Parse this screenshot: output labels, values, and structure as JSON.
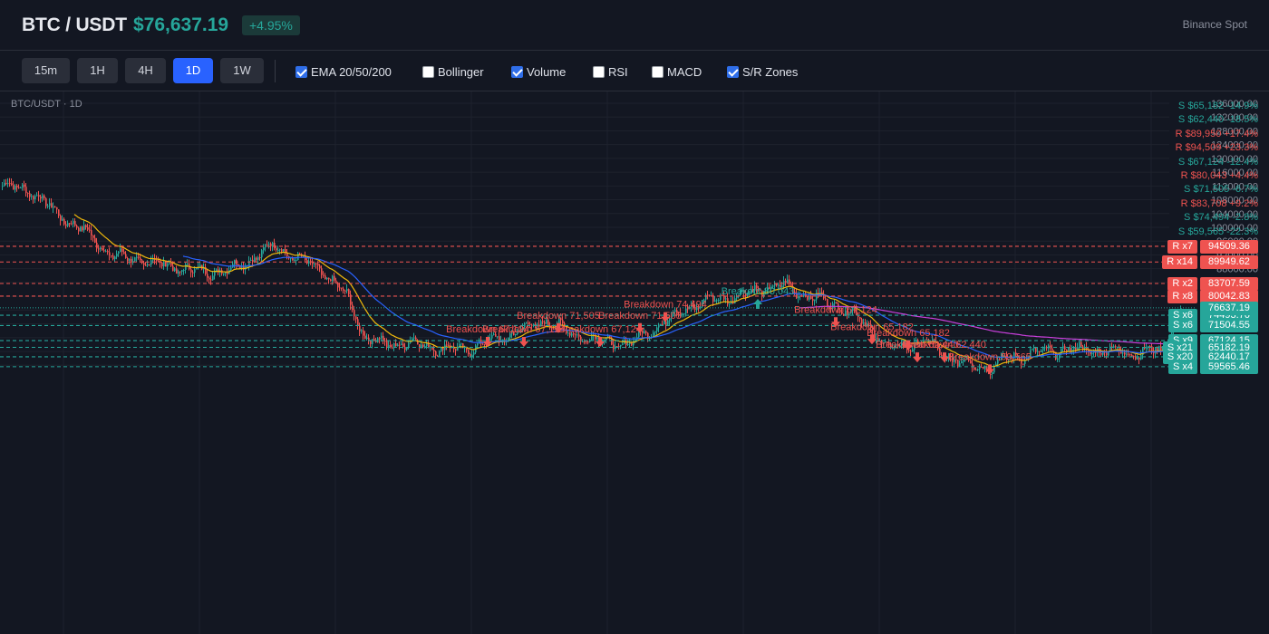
{
  "header": {
    "symbol": "BTC / USDT",
    "price": "$76,637.19",
    "change": "+4.95%",
    "exchange": "Binance Spot"
  },
  "toolbar": {
    "timeframes": [
      {
        "label": "15m",
        "active": false
      },
      {
        "label": "1H",
        "active": false
      },
      {
        "label": "4H",
        "active": false
      },
      {
        "label": "1D",
        "active": true
      },
      {
        "label": "1W",
        "active": false
      }
    ],
    "indicators": [
      {
        "label": "EMA 20/50/200",
        "checked": true
      },
      {
        "label": "Bollinger",
        "checked": false
      },
      {
        "label": "Volume",
        "checked": true
      },
      {
        "label": "RSI",
        "checked": false
      },
      {
        "label": "MACD",
        "checked": false
      },
      {
        "label": "S/R Zones",
        "checked": true
      }
    ]
  },
  "chart": {
    "label": "BTC/USDT · 1D",
    "colors": {
      "up": "#26a69a",
      "down": "#ef5350",
      "ema20": "#f0b90b",
      "ema50": "#2962ff",
      "ema200": "#c93fdb",
      "bg": "#131722",
      "grid": "#1e222d",
      "axis_text": "#8a8f9c"
    }
  },
  "sr_list": [
    {
      "text": "S $65,182 -14.9%",
      "type": "s"
    },
    {
      "text": "S $62,440 -18.5%",
      "type": "s"
    },
    {
      "text": "R $89,950 +17.4%",
      "type": "r"
    },
    {
      "text": "R $94,509 +23.3%",
      "type": "r"
    },
    {
      "text": "S $67,124 -12.4%",
      "type": "s"
    },
    {
      "text": "R $80,043 +4.4%",
      "type": "r"
    },
    {
      "text": "S $71,505 -6.7%",
      "type": "s"
    },
    {
      "text": "R $83,708 +9.2%",
      "type": "r"
    },
    {
      "text": "S $74,494 -2.8%",
      "type": "s"
    },
    {
      "text": "S $59,565 -22.3%",
      "type": "s"
    }
  ],
  "chart_data": {
    "type": "candlestick",
    "y_ticks": [
      "136000.00",
      "132000.00",
      "128000.00",
      "124000.00",
      "120000.00",
      "116000.00",
      "112000.00",
      "108000.00",
      "104000.00",
      "100000.00",
      "96000.00",
      "92000.00",
      "88000.00",
      "84000.00",
      "80000.00",
      "76000.00",
      "72000.00",
      "68000.00",
      "64000.00",
      "60000.00"
    ],
    "ylim": [
      58000,
      138000
    ],
    "current_price": 76637.19,
    "current_price_label": "76637.19",
    "zones": [
      {
        "type": "r",
        "tag": "R x7",
        "price": 94509.36,
        "label": "94509.36"
      },
      {
        "type": "r",
        "tag": "R x14",
        "price": 89949.62,
        "label": "89949.62"
      },
      {
        "type": "r",
        "tag": "R x2",
        "price": 83707.59,
        "label": "83707.59"
      },
      {
        "type": "r",
        "tag": "R x8",
        "price": 80042.83,
        "label": "80042.83"
      },
      {
        "type": "s",
        "tag": "S x6",
        "price": 74493.76,
        "label": "74493.76"
      },
      {
        "type": "s",
        "tag": "S x6",
        "price": 71504.55,
        "label": "71504.55"
      },
      {
        "type": "s",
        "tag": "S x9",
        "price": 67124.15,
        "label": "67124.15"
      },
      {
        "type": "s",
        "tag": "S x21",
        "price": 65182.19,
        "label": "65182.19"
      },
      {
        "type": "s",
        "tag": "S x20",
        "price": 62440.17,
        "label": "62440.17"
      },
      {
        "type": "s",
        "tag": "S x4",
        "price": 59565.46,
        "label": "59565.46"
      }
    ],
    "anchors": [
      [
        0,
        112000
      ],
      [
        15,
        111000
      ],
      [
        30,
        104000
      ],
      [
        45,
        99000
      ],
      [
        60,
        92000
      ],
      [
        75,
        90500
      ],
      [
        90,
        89000
      ],
      [
        110,
        87000
      ],
      [
        125,
        87500
      ],
      [
        138,
        91000
      ],
      [
        150,
        95000
      ],
      [
        162,
        91000
      ],
      [
        175,
        88000
      ],
      [
        190,
        80000
      ],
      [
        200,
        68000
      ],
      [
        212,
        66000
      ],
      [
        225,
        66500
      ],
      [
        240,
        65000
      ],
      [
        255,
        64500
      ],
      [
        270,
        67000
      ],
      [
        285,
        70000
      ],
      [
        300,
        73000
      ],
      [
        315,
        69000
      ],
      [
        330,
        67000
      ],
      [
        345,
        66000
      ],
      [
        360,
        71000
      ],
      [
        375,
        76000
      ],
      [
        390,
        79000
      ],
      [
        405,
        80000
      ],
      [
        420,
        82500
      ],
      [
        432,
        83000
      ],
      [
        445,
        80000
      ],
      [
        460,
        77500
      ],
      [
        472,
        74000
      ],
      [
        480,
        70000
      ],
      [
        490,
        64500
      ],
      [
        500,
        66000
      ],
      [
        510,
        67000
      ],
      [
        520,
        62500
      ],
      [
        535,
        60000
      ],
      [
        545,
        59500
      ],
      [
        555,
        62000
      ],
      [
        570,
        63500
      ],
      [
        585,
        64500
      ],
      [
        600,
        64500
      ],
      [
        615,
        64000
      ],
      [
        625,
        63500
      ],
      [
        640,
        64500
      ],
      [
        650,
        76600
      ]
    ],
    "candle_count": 651,
    "markers": [
      {
        "text": "Breakdown 71,505",
        "type": "down",
        "index": 307,
        "price": 73000
      },
      {
        "text": "Breakdown 74,494",
        "type": "down",
        "index": 366,
        "price": 76200
      },
      {
        "text": "Breakdown 71,505",
        "type": "down",
        "index": 352,
        "price": 73000
      },
      {
        "text": "Breakout 80,043",
        "type": "up",
        "index": 417,
        "price": 80043
      },
      {
        "text": "Breakdown 67,124",
        "type": "down",
        "index": 268,
        "price": 69000
      },
      {
        "text": "Breakdown 67,124",
        "type": "down",
        "index": 288,
        "price": 69000
      },
      {
        "text": "Breakdown 67,124",
        "type": "down",
        "index": 330,
        "price": 69000
      },
      {
        "text": "Breakdown 67,124",
        "type": "down",
        "index": 460,
        "price": 74700
      },
      {
        "text": "Breakdown 65,182",
        "type": "down",
        "index": 480,
        "price": 69700
      },
      {
        "text": "Breakdown 65,182",
        "type": "down",
        "index": 500,
        "price": 68000
      },
      {
        "text": "Breakdown 62,440",
        "type": "down",
        "index": 505,
        "price": 64500
      },
      {
        "text": "Breakdown 62,440",
        "type": "down",
        "index": 520,
        "price": 64500
      },
      {
        "text": "Breakdown 59,565",
        "type": "down",
        "index": 545,
        "price": 61000
      }
    ]
  }
}
